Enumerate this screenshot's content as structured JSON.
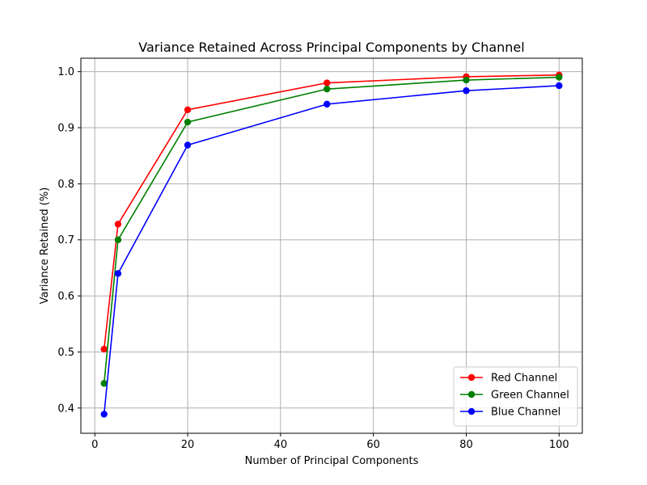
{
  "chart_data": {
    "type": "line",
    "title": "Variance Retained Across Principal Components by Channel",
    "xlabel": "Number of Principal Components",
    "ylabel": "Variance Retained (%)",
    "xlim": [
      -3,
      105
    ],
    "ylim": [
      0.355,
      1.024
    ],
    "xticks": [
      0,
      20,
      40,
      60,
      80,
      100
    ],
    "yticks": [
      0.4,
      0.5,
      0.6,
      0.7,
      0.8,
      0.9,
      1.0
    ],
    "grid": true,
    "legend_position": "lower-right",
    "x": [
      2,
      5,
      20,
      50,
      80,
      100
    ],
    "series": [
      {
        "name": "Red Channel",
        "color": "#ff0000",
        "values": [
          0.505,
          0.728,
          0.932,
          0.98,
          0.991,
          0.994
        ]
      },
      {
        "name": "Green Channel",
        "color": "#008000",
        "values": [
          0.444,
          0.7,
          0.91,
          0.969,
          0.985,
          0.99
        ]
      },
      {
        "name": "Blue Channel",
        "color": "#0000ff",
        "values": [
          0.389,
          0.64,
          0.869,
          0.942,
          0.966,
          0.975
        ]
      }
    ]
  }
}
